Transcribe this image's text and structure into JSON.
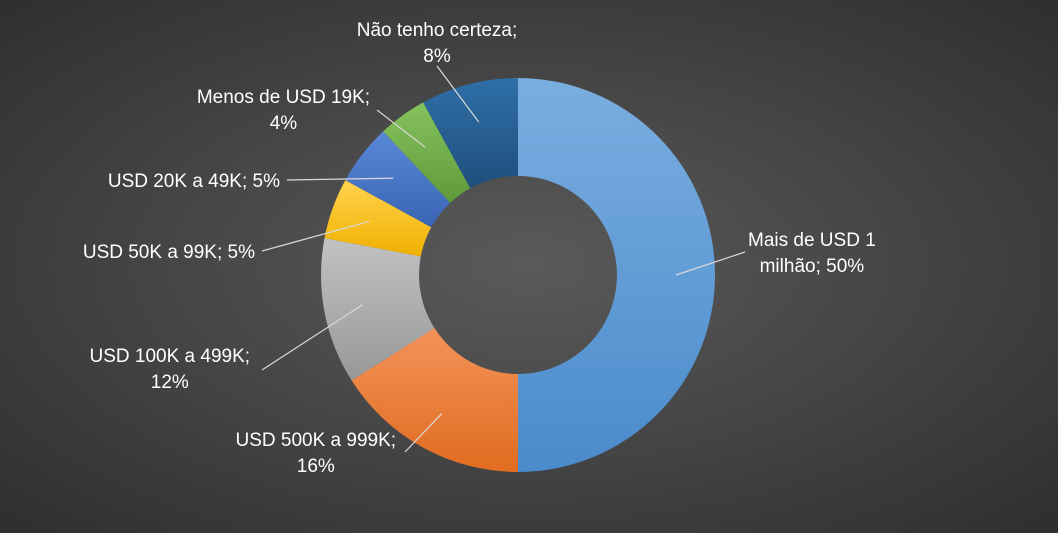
{
  "chart_data": {
    "type": "pie",
    "variant": "doughnut",
    "title": "",
    "legend": "none",
    "start_angle_deg": 0,
    "direction": "clockwise",
    "slices": [
      {
        "category": "Mais de USD 1 milhão",
        "value": 50,
        "label_lines": [
          "Mais de USD 1",
          "milhão; 50%"
        ],
        "color": "#5b9bd5"
      },
      {
        "category": "USD 500K a 999K",
        "value": 16,
        "label_lines": [
          "USD 500K a 999K;",
          "16%"
        ],
        "color": "#ed7d31"
      },
      {
        "category": "USD 100K a 499K",
        "value": 12,
        "label_lines": [
          "USD 100K a 499K;",
          "12%"
        ],
        "color": "#a5a5a5"
      },
      {
        "category": "USD 50K a 99K",
        "value": 5,
        "label_lines": [
          "USD 50K a 99K; 5%"
        ],
        "color": "#ffc000"
      },
      {
        "category": "USD 20K a 49K",
        "value": 5,
        "label_lines": [
          "USD 20K a 49K; 5%"
        ],
        "color": "#4472c4"
      },
      {
        "category": "Menos de USD 19K",
        "value": 4,
        "label_lines": [
          "Menos de USD 19K;",
          "4%"
        ],
        "color": "#70ad47"
      },
      {
        "category": "Não tenho certeza",
        "value": 8,
        "label_lines": [
          "Não tenho certeza;",
          "8%"
        ],
        "color": "#255e91"
      }
    ]
  }
}
